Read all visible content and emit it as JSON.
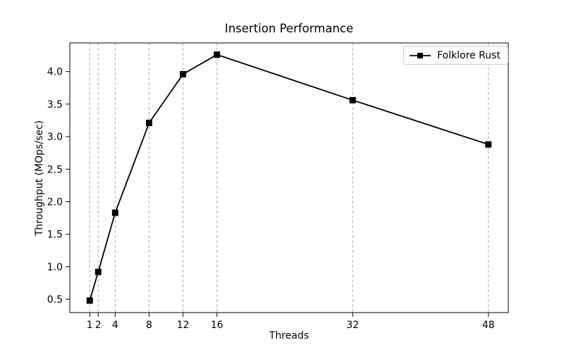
{
  "chart_data": {
    "type": "line",
    "title": "Insertion Performance",
    "xlabel": "Threads",
    "ylabel": "Throughput (MOps/sec)",
    "x": [
      1,
      2,
      4,
      8,
      12,
      16,
      32,
      48
    ],
    "series": [
      {
        "name": "Folklore Rust",
        "values": [
          0.48,
          0.92,
          1.83,
          3.21,
          3.96,
          4.26,
          3.56,
          2.88
        ],
        "color": "#000000",
        "marker": "square"
      }
    ],
    "xticks": [
      1,
      2,
      4,
      8,
      12,
      16,
      32,
      48
    ],
    "ytick_labels": [
      "0.5",
      "1.0",
      "1.5",
      "2.0",
      "2.5",
      "3.0",
      "3.5",
      "4.0"
    ],
    "yticks": [
      0.5,
      1.0,
      1.5,
      2.0,
      2.5,
      3.0,
      3.5,
      4.0
    ],
    "xlim": [
      -1.35,
      50.35
    ],
    "ylim": [
      0.295,
      4.44
    ],
    "grid": "vertical-dashed-x-only",
    "grid_color": "#b0b0b0",
    "axis_color": "#000000",
    "legend": {
      "position": "upper-right",
      "entries": [
        "Folklore Rust"
      ]
    }
  }
}
